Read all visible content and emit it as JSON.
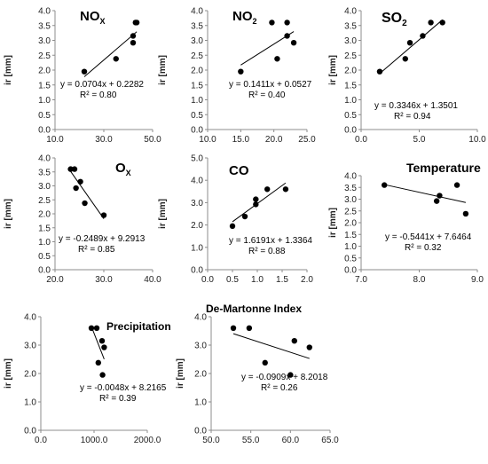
{
  "chart_data": [
    {
      "type": "scatter",
      "title": "NO",
      "title_sub": "X",
      "ylabel": "ir [mm]",
      "xlim": [
        10,
        50
      ],
      "ylim": [
        0,
        4
      ],
      "xticks": [
        "10.0",
        "30.0",
        "50.0"
      ],
      "yticks": [
        "0.0",
        "0.5",
        "1.0",
        "1.5",
        "2.0",
        "2.5",
        "3.0",
        "3.5",
        "4.0"
      ],
      "points": [
        [
          22,
          1.95
        ],
        [
          35,
          2.38
        ],
        [
          42,
          2.92
        ],
        [
          42,
          3.15
        ],
        [
          43,
          3.6
        ],
        [
          43.5,
          3.6
        ]
      ],
      "trendline": {
        "slope": 0.0704,
        "intercept": 0.2282
      },
      "equation": "y = 0.0704x + 0.2282",
      "r2": "R² = 0.80"
    },
    {
      "type": "scatter",
      "title": "NO",
      "title_sub": "2",
      "ylabel": "ir [mm]",
      "xlim": [
        10,
        25
      ],
      "ylim": [
        0,
        4
      ],
      "xticks": [
        "10.0",
        "15.0",
        "20.0",
        "25.0"
      ],
      "yticks": [
        "0.0",
        "0.5",
        "1.0",
        "1.5",
        "2.0",
        "2.5",
        "3.0",
        "3.5",
        "4.0"
      ],
      "points": [
        [
          15,
          1.95
        ],
        [
          19.7,
          3.6
        ],
        [
          20.5,
          2.38
        ],
        [
          22,
          3.6
        ],
        [
          22,
          3.15
        ],
        [
          23,
          2.92
        ]
      ],
      "trendline": {
        "slope": 0.1411,
        "intercept": 0.0527
      },
      "equation": "y = 0.1411x + 0.0527",
      "r2": "R² = 0.40"
    },
    {
      "type": "scatter",
      "title": "SO",
      "title_sub": "2",
      "ylabel": "ir [mm]",
      "xlim": [
        0,
        10
      ],
      "ylim": [
        0,
        4
      ],
      "xticks": [
        "0.0",
        "5.0",
        "10.0"
      ],
      "yticks": [
        "0.0",
        "0.5",
        "1.0",
        "1.5",
        "2.0",
        "2.5",
        "3.0",
        "3.5",
        "4.0"
      ],
      "points": [
        [
          1.6,
          1.95
        ],
        [
          3.8,
          2.38
        ],
        [
          4.2,
          2.92
        ],
        [
          5.3,
          3.15
        ],
        [
          6,
          3.6
        ],
        [
          7,
          3.6
        ]
      ],
      "trendline": {
        "slope": 0.3346,
        "intercept": 1.3501
      },
      "equation": "y = 0.3346x + 1.3501",
      "r2": "R² = 0.94"
    },
    {
      "type": "scatter",
      "title": "O",
      "title_sub": "X",
      "ylabel": "ir [mm]",
      "xlim": [
        20,
        40
      ],
      "ylim": [
        0,
        4
      ],
      "xticks": [
        "20.0",
        "30.0",
        "40.0"
      ],
      "yticks": [
        "0.0",
        "0.5",
        "1.0",
        "1.5",
        "2.0",
        "2.5",
        "3.0",
        "3.5",
        "4.0"
      ],
      "points": [
        [
          23.2,
          3.6
        ],
        [
          24,
          3.6
        ],
        [
          24.3,
          2.92
        ],
        [
          25.2,
          3.15
        ],
        [
          26.1,
          2.38
        ],
        [
          30,
          1.95
        ]
      ],
      "trendline": {
        "slope": -0.2489,
        "intercept": 9.2913
      },
      "equation": "y = -0.2489x + 9.2913",
      "r2": "R² = 0.85"
    },
    {
      "type": "scatter",
      "title": "CO",
      "title_sub": "",
      "ylabel": "ir [mm]",
      "xlim": [
        0,
        2
      ],
      "ylim": [
        0,
        5
      ],
      "xticks": [
        "0.0",
        "0.5",
        "1.0",
        "1.5",
        "2.0"
      ],
      "yticks": [
        "0.0",
        "1.0",
        "2.0",
        "3.0",
        "4.0",
        "5.0"
      ],
      "points": [
        [
          0.5,
          1.95
        ],
        [
          0.75,
          2.38
        ],
        [
          0.97,
          2.92
        ],
        [
          0.97,
          3.15
        ],
        [
          1.2,
          3.6
        ],
        [
          1.57,
          3.6
        ]
      ],
      "trendline": {
        "slope": 1.6191,
        "intercept": 1.3364
      },
      "equation": "y = 1.6191x + 1.3364",
      "r2": "R² = 0.88"
    },
    {
      "type": "scatter",
      "title": "Temperature",
      "title_sub": "",
      "ylabel": "ir [mm]",
      "xlim": [
        7,
        9
      ],
      "ylim": [
        0,
        4
      ],
      "xticks": [
        "7.0",
        "8.0",
        "9.0"
      ],
      "yticks": [
        "0.0",
        "0.5",
        "1.0",
        "1.5",
        "2.0",
        "2.5",
        "3.0",
        "3.5",
        "4.0"
      ],
      "points": [
        [
          7.4,
          3.6
        ],
        [
          8.3,
          2.92
        ],
        [
          8.35,
          3.15
        ],
        [
          8.65,
          3.6
        ],
        [
          8.8,
          2.38
        ]
      ],
      "trendline": {
        "slope": -0.5441,
        "intercept": 7.6464
      },
      "equation": "y = -0.5441x + 7.6464",
      "r2": "R² = 0.32"
    },
    {
      "type": "scatter",
      "title": "Precipitation",
      "title_sub": "",
      "ylabel": "ir [mm]",
      "xlim": [
        0,
        2000
      ],
      "ylim": [
        0,
        4
      ],
      "xticks": [
        "0.0",
        "1000.0",
        "2000.0"
      ],
      "yticks": [
        "0.0",
        "1.0",
        "2.0",
        "3.0",
        "4.0"
      ],
      "points": [
        [
          950,
          3.6
        ],
        [
          1050,
          3.6
        ],
        [
          1080,
          2.38
        ],
        [
          1150,
          3.15
        ],
        [
          1190,
          2.92
        ],
        [
          1160,
          1.95
        ]
      ],
      "trendline": {
        "slope": -0.0048,
        "intercept": 8.2165
      },
      "equation": "y = -0.0048x + 8.2165",
      "r2": "R² = 0.39"
    },
    {
      "type": "scatter",
      "title": "De-Martonne Index",
      "title_sub": "",
      "ylabel": "ir [mm]",
      "xlim": [
        50,
        65
      ],
      "ylim": [
        0,
        4
      ],
      "xticks": [
        "50.0",
        "55.0",
        "60.0",
        "65.0"
      ],
      "yticks": [
        "0.0",
        "1.0",
        "2.0",
        "3.0",
        "4.0"
      ],
      "points": [
        [
          52.8,
          3.6
        ],
        [
          54.8,
          3.6
        ],
        [
          56.8,
          2.38
        ],
        [
          60,
          1.95
        ],
        [
          60.5,
          3.15
        ],
        [
          62.4,
          2.92
        ]
      ],
      "trendline": {
        "slope": -0.0909,
        "intercept": 8.2018
      },
      "equation": "y = -0.0909x + 8.2018",
      "r2": "R² = 0.26"
    }
  ]
}
